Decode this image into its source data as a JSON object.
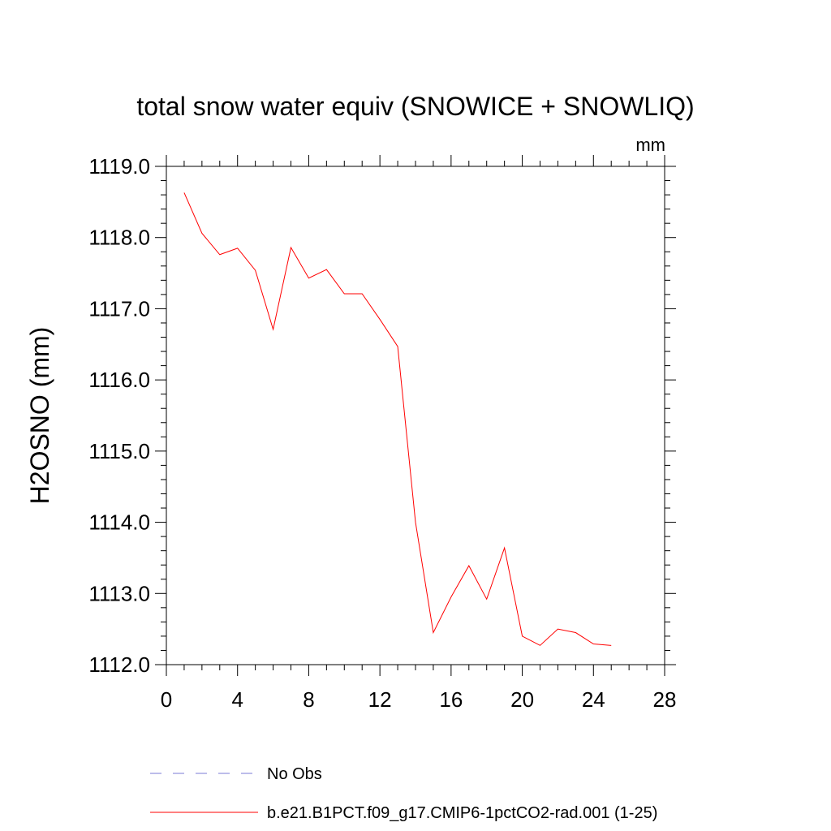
{
  "chart_data": {
    "type": "line",
    "title": "total snow water equiv (SNOWICE + SNOWLIQ)",
    "units_label": "mm",
    "ylabel": "H2OSNO  (mm)",
    "xlabel": "",
    "xlim": [
      0,
      28
    ],
    "ylim": [
      1112.0,
      1119.0
    ],
    "x_ticks": [
      0,
      4,
      8,
      12,
      16,
      20,
      24,
      28
    ],
    "x_tick_labels": [
      "0",
      "4",
      "8",
      "12",
      "16",
      "20",
      "24",
      "28"
    ],
    "y_ticks": [
      1112.0,
      1113.0,
      1114.0,
      1115.0,
      1116.0,
      1117.0,
      1118.0,
      1119.0
    ],
    "y_tick_labels": [
      "1112.0",
      "1113.0",
      "1114.0",
      "1115.0",
      "1116.0",
      "1117.0",
      "1118.0",
      "1119.0"
    ],
    "grid": false,
    "legend_position": "bottom",
    "series": [
      {
        "name": "No Obs",
        "style": "dashed",
        "color": "#7b7bd6",
        "x": [],
        "y": []
      },
      {
        "name": "b.e21.B1PCT.f09_g17.CMIP6-1pctCO2-rad.001 (1-25)",
        "style": "solid",
        "color": "#ff0000",
        "x": [
          1,
          2,
          3,
          4,
          5,
          6,
          7,
          8,
          9,
          10,
          11,
          12,
          13,
          14,
          15,
          16,
          17,
          18,
          19,
          20,
          21,
          22,
          23,
          24,
          25
        ],
        "y": [
          1118.63,
          1118.06,
          1117.76,
          1117.85,
          1117.54,
          1116.71,
          1117.86,
          1117.43,
          1117.55,
          1117.21,
          1117.21,
          1116.85,
          1116.47,
          1114.0,
          1112.45,
          1112.95,
          1113.39,
          1112.92,
          1113.64,
          1112.4,
          1112.27,
          1112.5,
          1112.45,
          1112.29,
          1112.27
        ]
      }
    ]
  }
}
